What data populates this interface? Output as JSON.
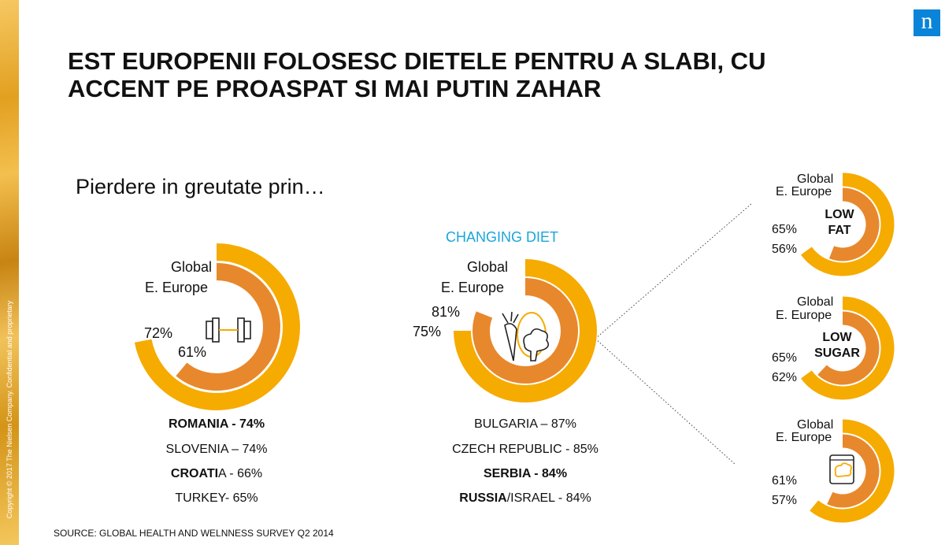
{
  "title": "EST EUROPENII FOLOSESC DIETELE PENTRU A SLABI, CU ACCENT PE PROASPAT  SI MAI PUTIN ZAHAR",
  "subtitle": "Pierdere in greutate prin…",
  "copyright": "Copyright © 2017 The Nielsen Company. Confidential and proprietary",
  "logo_letter": "n",
  "source": "SOURCE: GLOBAL HEALTH AND WELNNESS SURVEY Q2 2014",
  "colors": {
    "global": "#f6ab00",
    "e_europe": "#e8882c",
    "accent_text": "#1aa5dc",
    "logo": "#0a84d8"
  },
  "chart_data": [
    {
      "type": "radial_bar",
      "icon": "dumbbell-icon",
      "series": [
        {
          "name": "Global",
          "value": 72,
          "label": "72%"
        },
        {
          "name": "E. Europe",
          "value": 61,
          "label": "61%"
        }
      ],
      "countries": [
        {
          "strong": "ROMANIA -  74%",
          "rest": ""
        },
        {
          "strong": "",
          "rest": "SLOVENIA – 74%"
        },
        {
          "strong": "CROATI",
          "rest": "A - 66%"
        },
        {
          "strong": "",
          "rest": "TURKEY- 65%"
        }
      ]
    },
    {
      "type": "radial_bar",
      "title": "CHANGING DIET",
      "icon": "vegetables-icon",
      "series": [
        {
          "name": "Global",
          "value": 75,
          "label": "75%"
        },
        {
          "name": "E. Europe",
          "value": 81,
          "label": "81%"
        }
      ],
      "countries": [
        {
          "strong": "",
          "rest": "BULGARIA – 87%"
        },
        {
          "strong": "",
          "rest": "CZECH REPUBLIC -  85%"
        },
        {
          "strong": "SERBIA - 84%",
          "rest": ""
        },
        {
          "strong": "RUSSIA",
          "rest": "/ISRAEL  - 84%"
        }
      ]
    },
    {
      "type": "radial_bar",
      "inner_label": [
        "LOW",
        "FAT"
      ],
      "series": [
        {
          "name": "Global",
          "value": 65,
          "label": "65%"
        },
        {
          "name": "E. Europe",
          "value": 56,
          "label": "56%"
        }
      ]
    },
    {
      "type": "radial_bar",
      "inner_label": [
        "LOW",
        "SUGAR"
      ],
      "series": [
        {
          "name": "Global",
          "value": 65,
          "label": "65%"
        },
        {
          "name": "E. Europe",
          "value": 62,
          "label": "62%"
        }
      ]
    },
    {
      "type": "radial_bar",
      "icon": "snack-bag-icon",
      "series": [
        {
          "name": "Global",
          "value": 61,
          "label": "61%"
        },
        {
          "name": "E. Europe",
          "value": 57,
          "label": "57%"
        }
      ]
    }
  ]
}
